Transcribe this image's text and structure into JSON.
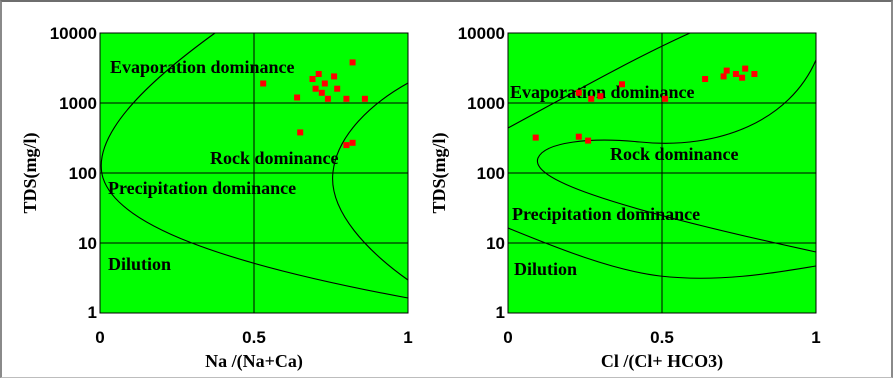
{
  "chart_data": [
    {
      "type": "scatter",
      "xlabel": "Na /(Na+Ca)",
      "ylabel": "TDS(mg/l)",
      "xlim": [
        0,
        1
      ],
      "ylim": [
        1,
        10000
      ],
      "yscale": "log",
      "x_ticks": [
        "0",
        "0.5",
        "1"
      ],
      "y_ticks": [
        "10000",
        "1000",
        "100",
        "10",
        "1"
      ],
      "regions": [
        "Evaporation dominance",
        "Rock dominance",
        "Precipitation dominance",
        "Dilution"
      ],
      "background": "#00ff00",
      "marker_color": "#ff0000",
      "grid": "x=0.5; y=10,100,1000",
      "points": [
        {
          "x": 0.53,
          "y": 1900
        },
        {
          "x": 0.64,
          "y": 1200
        },
        {
          "x": 0.65,
          "y": 380
        },
        {
          "x": 0.69,
          "y": 2200
        },
        {
          "x": 0.7,
          "y": 1600
        },
        {
          "x": 0.71,
          "y": 2600
        },
        {
          "x": 0.72,
          "y": 1400
        },
        {
          "x": 0.73,
          "y": 1900
        },
        {
          "x": 0.74,
          "y": 1150
        },
        {
          "x": 0.76,
          "y": 2400
        },
        {
          "x": 0.77,
          "y": 1600
        },
        {
          "x": 0.8,
          "y": 1150
        },
        {
          "x": 0.82,
          "y": 3800
        },
        {
          "x": 0.86,
          "y": 1150
        },
        {
          "x": 0.8,
          "y": 250
        },
        {
          "x": 0.82,
          "y": 270
        }
      ]
    },
    {
      "type": "scatter",
      "xlabel": "Cl /(Cl+ HCO3)",
      "ylabel": "TDS(mg/l)",
      "xlim": [
        0,
        1
      ],
      "ylim": [
        1,
        10000
      ],
      "yscale": "log",
      "x_ticks": [
        "0",
        "0.5",
        "1"
      ],
      "y_ticks": [
        "10000",
        "1000",
        "100",
        "10",
        "1"
      ],
      "regions": [
        "Evaporation dominance",
        "Rock dominance",
        "Precipitation dominance",
        "Dilution"
      ],
      "background": "#00ff00",
      "marker_color": "#ff0000",
      "grid": "x=0.5; y=10,100,1000",
      "points": [
        {
          "x": 0.09,
          "y": 320
        },
        {
          "x": 0.23,
          "y": 1400
        },
        {
          "x": 0.23,
          "y": 330
        },
        {
          "x": 0.26,
          "y": 290
        },
        {
          "x": 0.27,
          "y": 1150
        },
        {
          "x": 0.3,
          "y": 1250
        },
        {
          "x": 0.37,
          "y": 1850
        },
        {
          "x": 0.51,
          "y": 1150
        },
        {
          "x": 0.64,
          "y": 2200
        },
        {
          "x": 0.7,
          "y": 2400
        },
        {
          "x": 0.71,
          "y": 2900
        },
        {
          "x": 0.74,
          "y": 2600
        },
        {
          "x": 0.76,
          "y": 2300
        },
        {
          "x": 0.77,
          "y": 3100
        },
        {
          "x": 0.8,
          "y": 2600
        }
      ]
    }
  ]
}
